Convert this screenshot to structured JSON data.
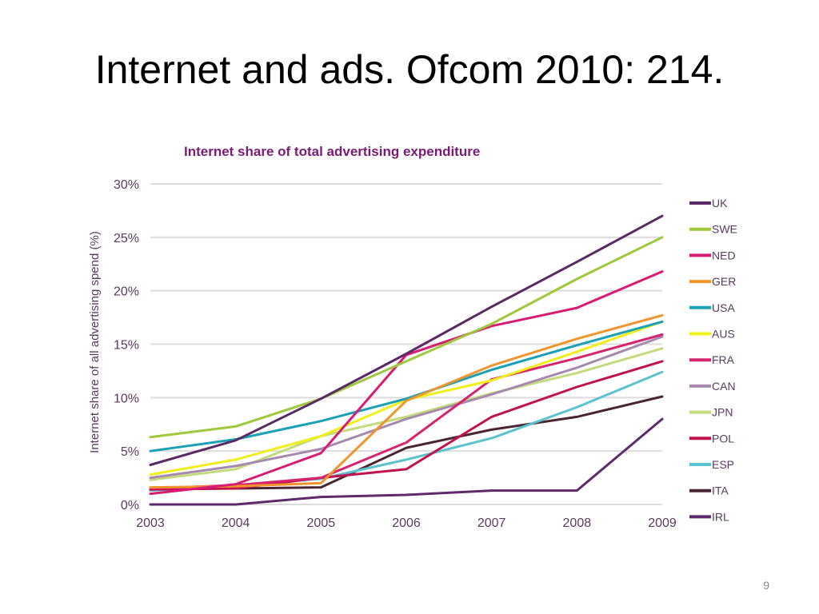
{
  "slide": {
    "title": "Internet and ads. Ofcom 2010: 214.",
    "page_number": "9"
  },
  "chart_data": {
    "type": "line",
    "title": "Internet share of total advertising expenditure",
    "xlabel": "",
    "ylabel": "Internet share of all advertising spend (%)",
    "x": [
      "2003",
      "2004",
      "2005",
      "2006",
      "2007",
      "2008",
      "2009"
    ],
    "ylim": [
      0,
      30
    ],
    "yticks": [
      0,
      5,
      10,
      15,
      20,
      25,
      30
    ],
    "ytick_labels": [
      "0%",
      "5%",
      "10%",
      "15%",
      "20%",
      "25%",
      "30%"
    ],
    "grid": true,
    "legend_position": "right",
    "series": [
      {
        "name": "UK",
        "color": "#5b2a66",
        "values": [
          3.7,
          6.0,
          9.9,
          14.1,
          18.5,
          22.7,
          27.0
        ]
      },
      {
        "name": "SWE",
        "color": "#9dc93b",
        "values": [
          6.3,
          7.3,
          9.9,
          13.4,
          16.9,
          21.1,
          25.0
        ]
      },
      {
        "name": "NED",
        "color": "#d81b73",
        "values": [
          1.0,
          1.9,
          4.8,
          14.0,
          16.7,
          18.4,
          21.8
        ]
      },
      {
        "name": "GER",
        "color": "#f0952d",
        "values": [
          1.6,
          1.7,
          2.0,
          9.7,
          13.0,
          15.5,
          17.7
        ]
      },
      {
        "name": "USA",
        "color": "#1aa1b5",
        "values": [
          5.0,
          6.1,
          7.8,
          9.9,
          12.6,
          14.9,
          17.1
        ]
      },
      {
        "name": "AUS",
        "color": "#f2ee1a",
        "values": [
          2.8,
          4.2,
          6.4,
          9.8,
          11.6,
          14.3,
          17.1
        ]
      },
      {
        "name": "FRA",
        "color": "#d6246e",
        "values": [
          1.5,
          1.8,
          2.5,
          5.8,
          11.7,
          13.7,
          15.9
        ]
      },
      {
        "name": "CAN",
        "color": "#a58aae",
        "values": [
          2.5,
          3.6,
          5.2,
          8.0,
          10.3,
          12.8,
          15.7
        ]
      },
      {
        "name": "JPN",
        "color": "#c2dc7c",
        "values": [
          2.3,
          3.3,
          6.4,
          8.2,
          10.4,
          12.3,
          14.6
        ]
      },
      {
        "name": "POL",
        "color": "#c0134e",
        "values": [
          1.4,
          1.5,
          2.5,
          3.3,
          8.2,
          11.0,
          13.4
        ]
      },
      {
        "name": "ESP",
        "color": "#5bc2d0",
        "values": [
          1.3,
          1.8,
          2.4,
          4.2,
          6.2,
          9.1,
          12.4
        ]
      },
      {
        "name": "ITA",
        "color": "#4a2533",
        "values": [
          1.5,
          1.5,
          1.6,
          5.3,
          7.0,
          8.2,
          10.1
        ]
      },
      {
        "name": "IRL",
        "color": "#5e2a6b",
        "values": [
          0.0,
          0.0,
          0.7,
          0.9,
          1.3,
          1.3,
          8.0
        ]
      }
    ]
  }
}
